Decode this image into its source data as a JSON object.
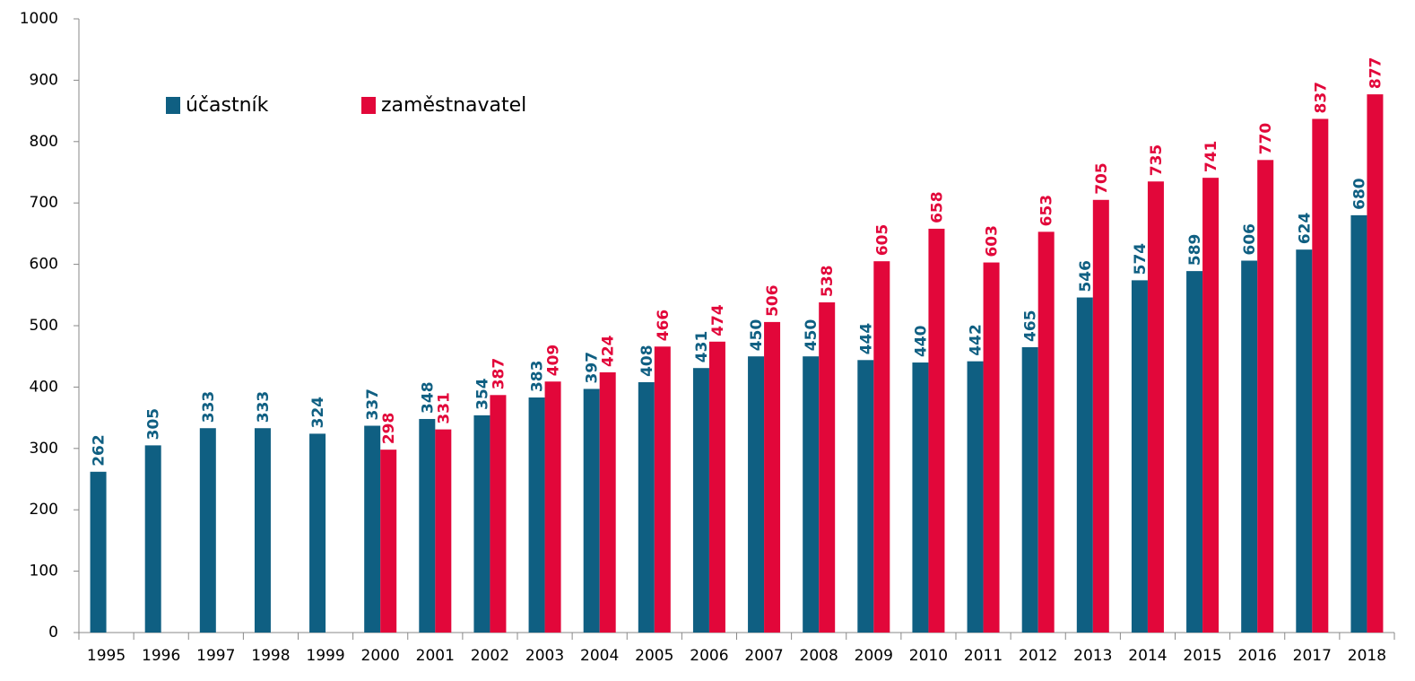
{
  "chart_data": {
    "type": "bar",
    "categories": [
      "1995",
      "1996",
      "1997",
      "1998",
      "1999",
      "2000",
      "2001",
      "2002",
      "2003",
      "2004",
      "2005",
      "2006",
      "2007",
      "2008",
      "2009",
      "2010",
      "2011",
      "2012",
      "2013",
      "2014",
      "2015",
      "2016",
      "2017",
      "2018"
    ],
    "series": [
      {
        "name": "účastník",
        "color": "#0f5f82",
        "values": [
          262,
          305,
          333,
          333,
          324,
          337,
          348,
          354,
          383,
          397,
          408,
          431,
          450,
          450,
          444,
          440,
          442,
          465,
          546,
          574,
          589,
          606,
          624,
          680
        ]
      },
      {
        "name": "zaměstnavatel",
        "color": "#e2073a",
        "values": [
          null,
          null,
          null,
          null,
          null,
          298,
          331,
          387,
          409,
          424,
          466,
          474,
          506,
          538,
          605,
          658,
          603,
          653,
          705,
          735,
          741,
          770,
          837,
          877
        ]
      }
    ],
    "ylim": [
      0,
      1000
    ],
    "yticks": [
      0,
      100,
      200,
      300,
      400,
      500,
      600,
      700,
      800,
      900,
      1000
    ],
    "grid": false
  }
}
